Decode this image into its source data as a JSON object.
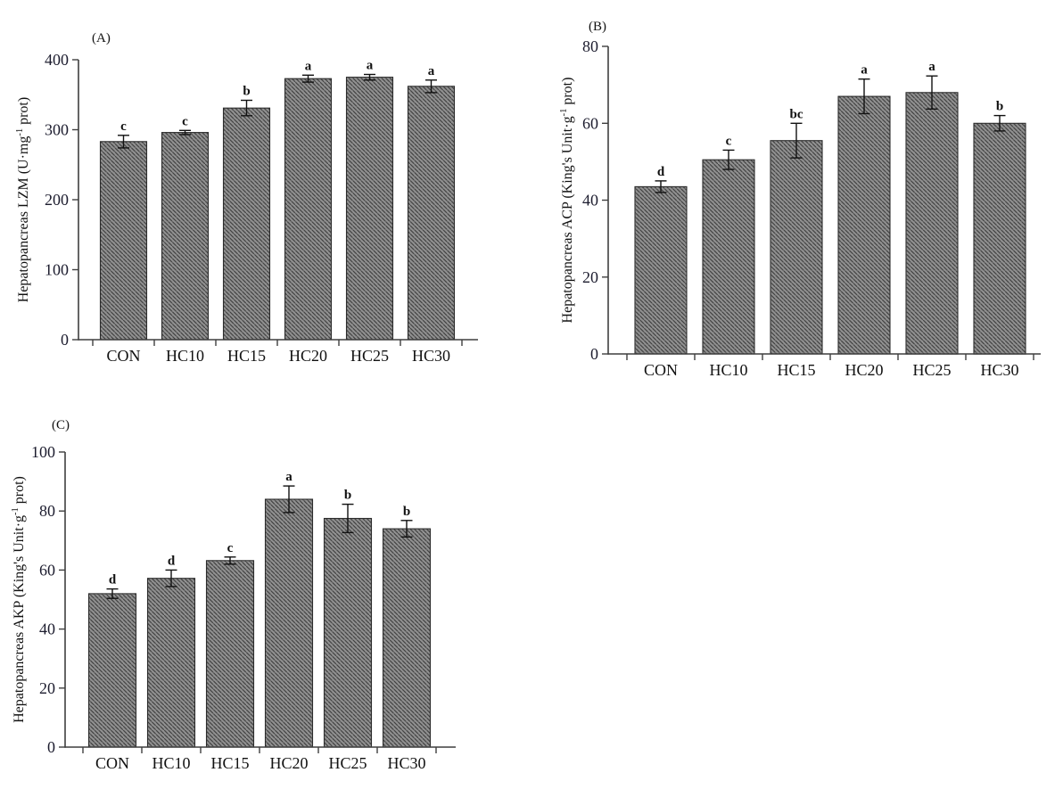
{
  "page": {
    "background": "#ffffff"
  },
  "figure": {
    "colors": {
      "background": "#ffffff",
      "bar_fill": "#919191",
      "bar_hatch": "#3b3b3b",
      "bar_border": "#2c2c2c",
      "axis": "#3f3f3f",
      "error_bar": "#111111",
      "tick_label": "#1c1c2e",
      "text": "#111111"
    }
  },
  "chart_data": [
    {
      "panel": "(A)",
      "type": "bar",
      "title": "",
      "xlabel": "",
      "ylabel": {
        "prefix": "Hepatopancreas LZM (U·mg",
        "sup": "-1",
        "suffix": " prot)"
      },
      "categories": [
        "CON",
        "HC10",
        "HC15",
        "HC20",
        "HC25",
        "HC30"
      ],
      "values": [
        283,
        296,
        331,
        373,
        375,
        362
      ],
      "errors": [
        9,
        3,
        11,
        5,
        4,
        9
      ],
      "sig_letters": [
        "c",
        "c",
        "b",
        "a",
        "a",
        "a"
      ],
      "ylim": [
        0,
        400
      ],
      "yticks": [
        0,
        100,
        200,
        300,
        400
      ],
      "grid": "off",
      "legend": "none"
    },
    {
      "panel": "(B)",
      "type": "bar",
      "title": "",
      "xlabel": "",
      "ylabel": {
        "prefix": "Hepatopancreas ACP (King's Unit·g",
        "sup": "-1",
        "suffix": " prot)"
      },
      "categories": [
        "CON",
        "HC10",
        "HC15",
        "HC20",
        "HC25",
        "HC30"
      ],
      "values": [
        43.5,
        50.5,
        55.5,
        67,
        68,
        60
      ],
      "errors": [
        1.5,
        2.5,
        4.5,
        4.5,
        4.3,
        2
      ],
      "sig_letters": [
        "d",
        "c",
        "bc",
        "a",
        "a",
        "b"
      ],
      "ylim": [
        0,
        80
      ],
      "yticks": [
        0,
        20,
        40,
        60,
        80
      ],
      "grid": "off",
      "legend": "none"
    },
    {
      "panel": "(C)",
      "type": "bar",
      "title": "",
      "xlabel": "",
      "ylabel": {
        "prefix": "Hepatopancreas AKP (King's Unit·g",
        "sup": "-1",
        "suffix": " prot)"
      },
      "categories": [
        "CON",
        "HC10",
        "HC15",
        "HC20",
        "HC25",
        "HC30"
      ],
      "values": [
        52,
        57.2,
        63.2,
        84,
        77.5,
        74
      ],
      "errors": [
        1.6,
        2.8,
        1.2,
        4.5,
        4.8,
        2.8
      ],
      "sig_letters": [
        "d",
        "d",
        "c",
        "a",
        "b",
        "b"
      ],
      "ylim": [
        0,
        100
      ],
      "yticks": [
        0,
        20,
        40,
        60,
        80,
        100
      ],
      "grid": "off",
      "legend": "none"
    }
  ]
}
